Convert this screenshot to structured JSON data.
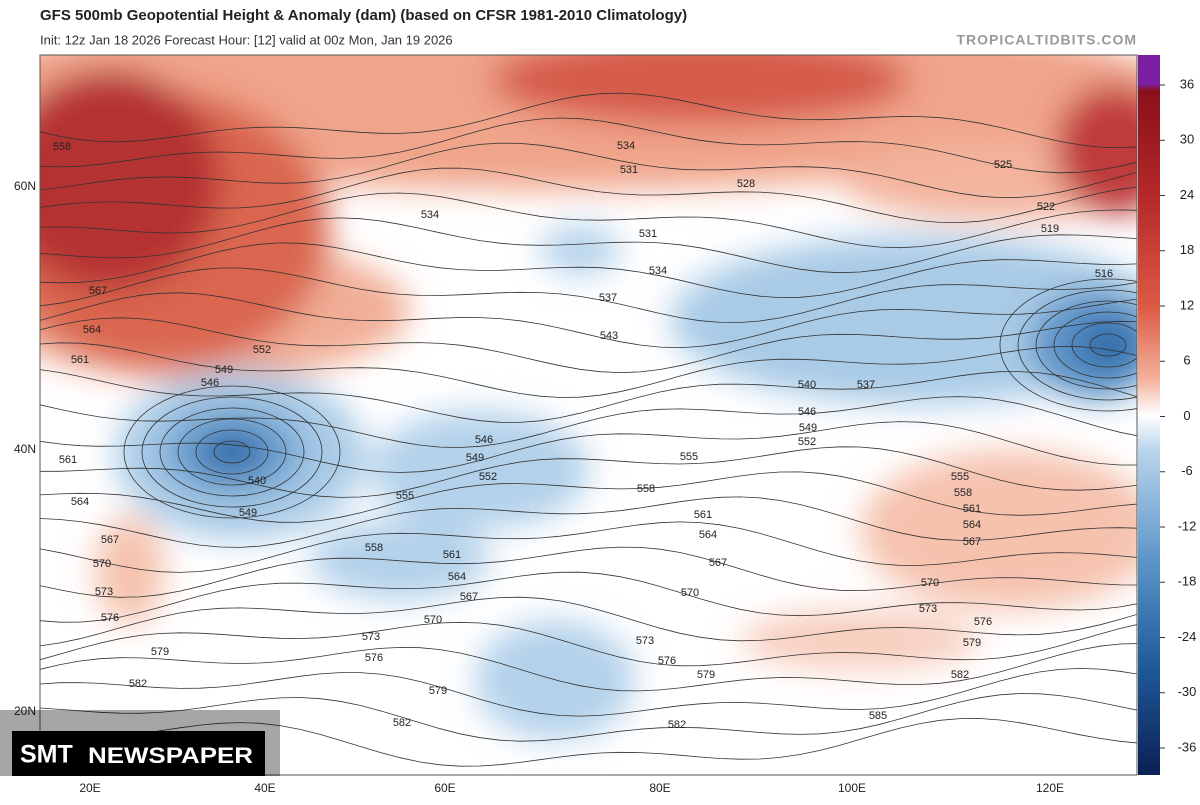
{
  "header": {
    "title": "GFS 500mb Geopotential Height & Anomaly (dam) (based on CFSR 1981-2010 Climatology)",
    "subtitle": "Init: 12z Jan 18 2026   Forecast Hour: [12]   valid at 00z Mon, Jan 19 2026",
    "site": "TROPICALTIDBITS.COM"
  },
  "colorbar": {
    "ticks": [
      36,
      30,
      24,
      18,
      12,
      6,
      0,
      -6,
      -12,
      -18,
      -24,
      -30,
      -36
    ]
  },
  "axes": {
    "lat_labels": [
      "60N",
      "40N",
      "20N"
    ],
    "lon_labels": [
      "20E",
      "40E",
      "60E",
      "80E",
      "100E",
      "120E"
    ]
  },
  "contour_labels": [
    558,
    567,
    564,
    561,
    552,
    549,
    546,
    561,
    564,
    567,
    570,
    573,
    576,
    579,
    582,
    540,
    549,
    555,
    546,
    549,
    552,
    558,
    561,
    564,
    567,
    570,
    573,
    576,
    579,
    582,
    534,
    534,
    531,
    528,
    531,
    534,
    537,
    543,
    540,
    537,
    546,
    549,
    552,
    555,
    558,
    561,
    564,
    567,
    570,
    570,
    573,
    576,
    579,
    582,
    573,
    576,
    579,
    582,
    585,
    555,
    558,
    561,
    564,
    567,
    525,
    522,
    519,
    516
  ],
  "watermark": {
    "brand": "SMT",
    "name": "NEWSPAPER"
  }
}
